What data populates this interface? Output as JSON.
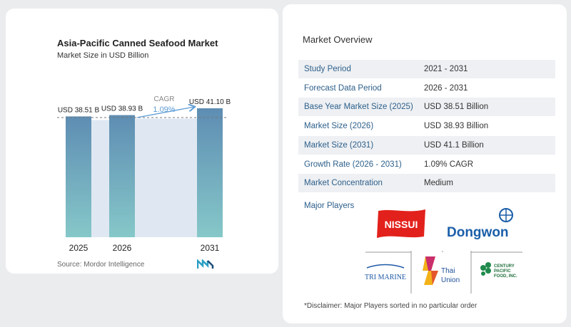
{
  "chart_data": {
    "type": "bar",
    "title": "Asia-Pacific Canned Seafood Market",
    "subtitle": "Market Size in USD Billion",
    "categories": [
      "2025",
      "2026",
      "2031"
    ],
    "values": [
      38.51,
      38.93,
      41.1
    ],
    "data_labels": [
      "USD 38.51 B",
      "USD 38.93 B",
      "USD 41.10 B"
    ],
    "annotation": {
      "label": "CAGR",
      "value": "1.09%"
    },
    "colors": {
      "bar_top": "#5e8db3",
      "bar_bottom": "#86c8c9",
      "gap_fill": "#dfe8f2",
      "arrow": "#5b9bd5"
    }
  },
  "source": "Source:  Mordor Intelligence",
  "overview": {
    "title": "Market Overview",
    "rows": [
      {
        "label": "Study Period",
        "value": "2021 - 2031"
      },
      {
        "label": "Forecast Data Period",
        "value": "2026 - 2031"
      },
      {
        "label": "Base Year Market Size (2025)",
        "value": "USD 38.51 Billion"
      },
      {
        "label": "Market Size (2026)",
        "value": "USD 38.93 Billion"
      },
      {
        "label": "Market Size (2031)",
        "value": "USD 41.1 Billion"
      },
      {
        "label": "Growth Rate (2026 - 2031)",
        "value": "1.09% CAGR"
      },
      {
        "label": "Market Concentration",
        "value": "Medium"
      }
    ],
    "players_label": "Major Players",
    "players": [
      "NISSUI",
      "Dongwon",
      "TRI MARINE",
      "Thai Union",
      "CENTURY PACIFIC FOOD, INC."
    ],
    "disclaimer": "*Disclaimer: Major Players sorted in no particular order"
  }
}
